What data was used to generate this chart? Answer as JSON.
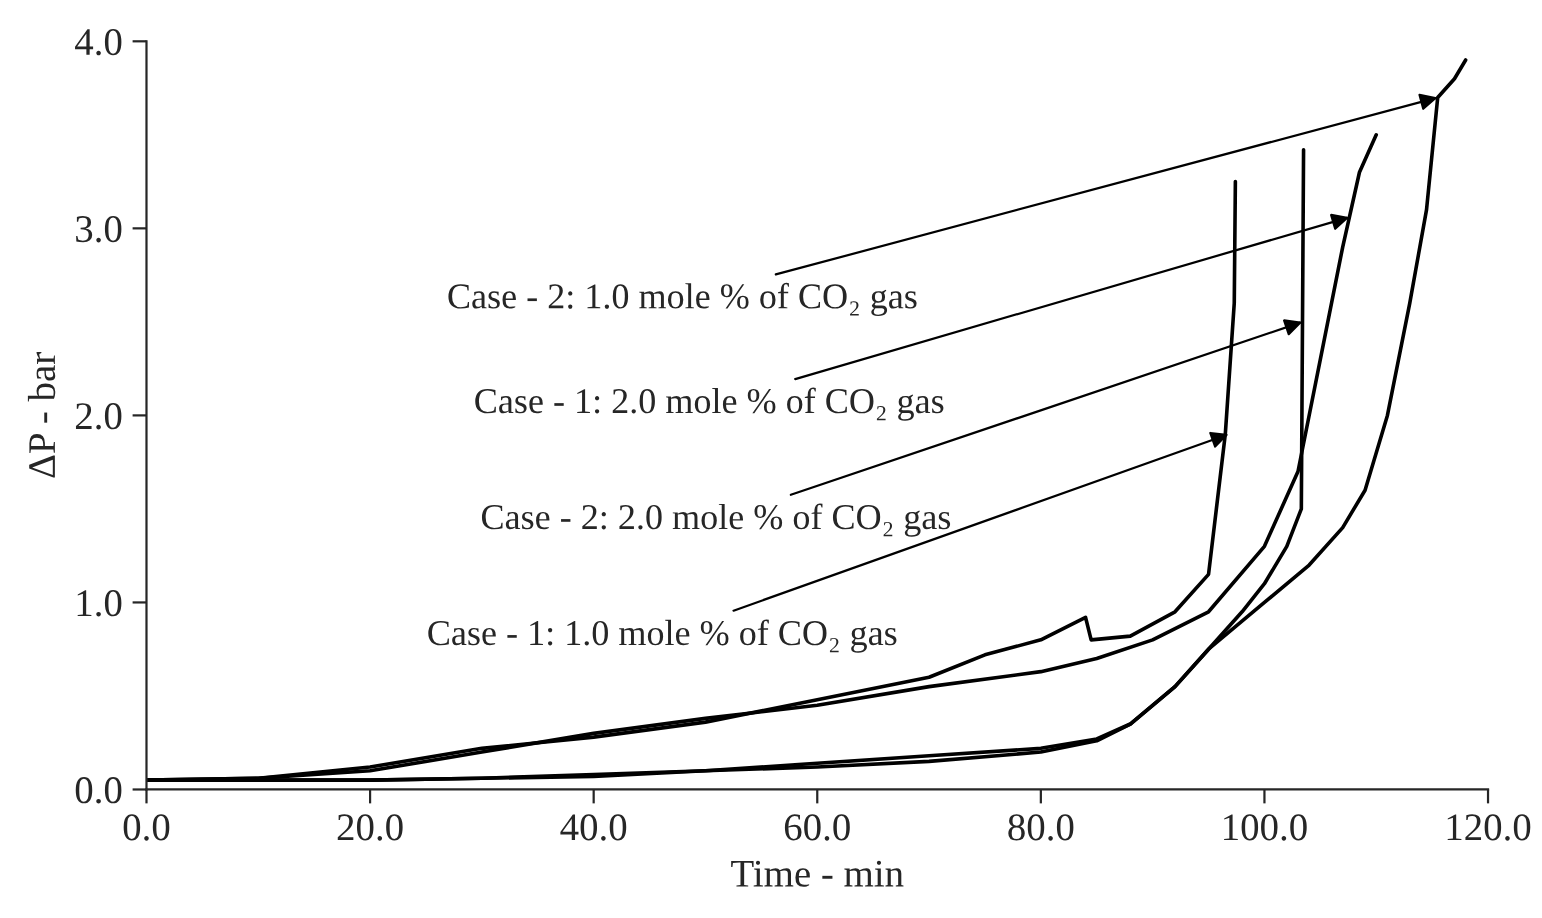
{
  "chart_data": {
    "type": "line",
    "xlabel": "Time - min",
    "ylabel": "ΔP - bar",
    "xlim": [
      0,
      120
    ],
    "ylim": [
      0,
      4
    ],
    "xticks": [
      {
        "value": 0,
        "label": "0.0"
      },
      {
        "value": 20,
        "label": "20.0"
      },
      {
        "value": 40,
        "label": "40.0"
      },
      {
        "value": 60,
        "label": "60.0"
      },
      {
        "value": 80,
        "label": "80.0"
      },
      {
        "value": 100,
        "label": "100.0"
      },
      {
        "value": 120,
        "label": "120.0"
      }
    ],
    "yticks": [
      {
        "value": 0,
        "label": "0.0"
      },
      {
        "value": 1,
        "label": "1.0"
      },
      {
        "value": 2,
        "label": "2.0"
      },
      {
        "value": 3,
        "label": "3.0"
      },
      {
        "value": 4,
        "label": "4.0"
      }
    ],
    "grid": false,
    "legend": false,
    "marker": "none",
    "line_style": "solid",
    "series": [
      {
        "color": "#000000",
        "x": [
          0,
          10,
          20,
          30,
          40,
          50,
          60,
          70,
          75,
          80,
          84,
          84.5,
          88,
          92,
          95,
          96.5,
          97.3,
          97.4
        ],
        "values": [
          0.05,
          0.06,
          0.12,
          0.22,
          0.28,
          0.36,
          0.48,
          0.6,
          0.72,
          0.8,
          0.92,
          0.8,
          0.82,
          0.95,
          1.15,
          1.9,
          2.6,
          3.25
        ]
      },
      {
        "color": "#000000",
        "x": [
          0,
          10,
          20,
          30,
          40,
          50,
          60,
          70,
          80,
          85,
          90,
          95,
          100,
          103,
          105,
          107,
          108.5,
          110
        ],
        "values": [
          0.05,
          0.06,
          0.1,
          0.2,
          0.3,
          0.38,
          0.45,
          0.55,
          0.63,
          0.7,
          0.8,
          0.95,
          1.3,
          1.7,
          2.3,
          2.9,
          3.3,
          3.5
        ]
      },
      {
        "color": "#000000",
        "x": [
          0,
          10,
          20,
          30,
          40,
          50,
          60,
          70,
          80,
          85,
          88,
          92,
          95,
          98,
          100,
          102,
          103.3,
          103.5
        ],
        "values": [
          0.05,
          0.05,
          0.05,
          0.06,
          0.08,
          0.1,
          0.12,
          0.15,
          0.2,
          0.26,
          0.35,
          0.55,
          0.75,
          0.95,
          1.1,
          1.3,
          1.5,
          3.42
        ]
      },
      {
        "color": "#000000",
        "x": [
          0,
          10,
          20,
          30,
          40,
          50,
          60,
          70,
          80,
          85,
          88,
          92,
          95,
          100,
          104,
          107,
          109,
          111,
          113,
          114.5,
          115.5,
          117,
          118
        ],
        "values": [
          0.05,
          0.05,
          0.05,
          0.06,
          0.07,
          0.1,
          0.14,
          0.18,
          0.22,
          0.27,
          0.35,
          0.55,
          0.75,
          1.0,
          1.2,
          1.4,
          1.6,
          2.0,
          2.6,
          3.1,
          3.7,
          3.8,
          3.9
        ]
      }
    ],
    "annotations": [
      {
        "text": "Case - 2: 1.0 mole % of CO₂ gas",
        "x": 115.5,
        "y": 3.7
      },
      {
        "text": "Case - 1: 2.0 mole % of CO₂ gas",
        "x": 107.6,
        "y": 3.06
      },
      {
        "text": "Case - 2: 2.0 mole % of CO₂ gas",
        "x": 103.4,
        "y": 2.5
      },
      {
        "text": "Case - 1: 1.0 mole % of CO₂ gas",
        "x": 96.8,
        "y": 1.9
      }
    ]
  }
}
